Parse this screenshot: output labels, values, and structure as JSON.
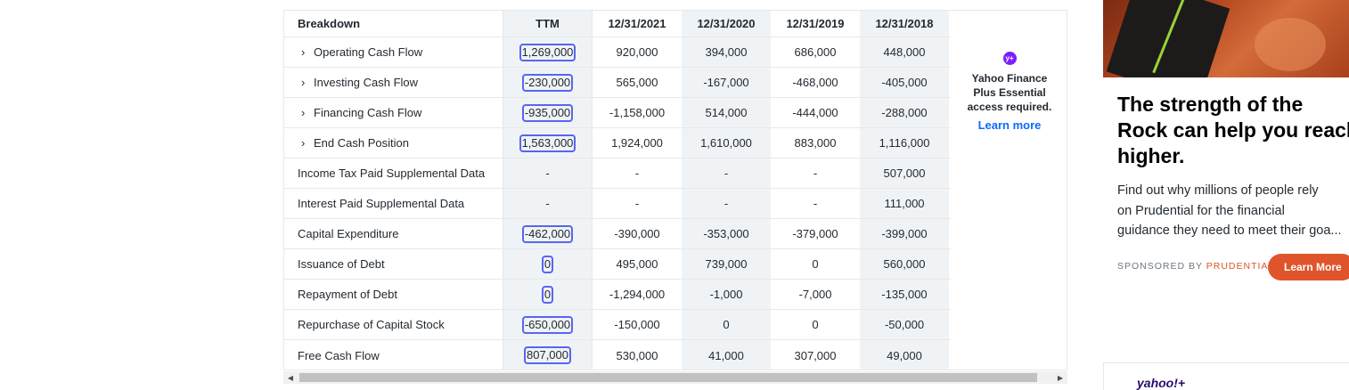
{
  "table": {
    "headers": [
      "Breakdown",
      "TTM",
      "12/31/2021",
      "12/31/2020",
      "12/31/2019",
      "12/31/2018"
    ],
    "rows": [
      {
        "label": "Operating Cash Flow",
        "expandable": true,
        "values": [
          "1,269,000",
          "920,000",
          "394,000",
          "686,000",
          "448,000"
        ]
      },
      {
        "label": "Investing Cash Flow",
        "expandable": true,
        "values": [
          "-230,000",
          "565,000",
          "-167,000",
          "-468,000",
          "-405,000"
        ]
      },
      {
        "label": "Financing Cash Flow",
        "expandable": true,
        "values": [
          "-935,000",
          "-1,158,000",
          "514,000",
          "-444,000",
          "-288,000"
        ]
      },
      {
        "label": "End Cash Position",
        "expandable": true,
        "values": [
          "1,563,000",
          "1,924,000",
          "1,610,000",
          "883,000",
          "1,116,000"
        ]
      },
      {
        "label": "Income Tax Paid Supplemental Data",
        "expandable": false,
        "values": [
          "-",
          "-",
          "-",
          "-",
          "507,000"
        ]
      },
      {
        "label": "Interest Paid Supplemental Data",
        "expandable": false,
        "values": [
          "-",
          "-",
          "-",
          "-",
          "111,000"
        ]
      },
      {
        "label": "Capital Expenditure",
        "expandable": false,
        "values": [
          "-462,000",
          "-390,000",
          "-353,000",
          "-379,000",
          "-399,000"
        ]
      },
      {
        "label": "Issuance of Debt",
        "expandable": false,
        "values": [
          "0",
          "495,000",
          "739,000",
          "0",
          "560,000"
        ]
      },
      {
        "label": "Repayment of Debt",
        "expandable": false,
        "values": [
          "0",
          "-1,294,000",
          "-1,000",
          "-7,000",
          "-135,000"
        ]
      },
      {
        "label": "Repurchase of Capital Stock",
        "expandable": false,
        "values": [
          "-650,000",
          "-150,000",
          "0",
          "0",
          "-50,000"
        ]
      },
      {
        "label": "Free Cash Flow",
        "expandable": false,
        "values": [
          "807,000",
          "530,000",
          "41,000",
          "307,000",
          "49,000"
        ]
      }
    ]
  },
  "plus_panel": {
    "badge": "y+",
    "message": "Yahoo Finance Plus Essential access required.",
    "link": "Learn more"
  },
  "ad": {
    "title_lines": [
      "The strength of the",
      "Rock can help you reach",
      "higher."
    ],
    "body_lines": [
      "Find out why millions of people rely",
      "on Prudential for the financial",
      "guidance they need to meet their goa..."
    ],
    "sponsored_prefix": "SPONSORED BY ",
    "sponsor": "PRUDENTIAL",
    "cta": "Learn More"
  },
  "bottom_logo": "yahoo!+",
  "icons": {
    "expand": "chevron-right-icon",
    "scroll_left": "triangle-left-icon",
    "scroll_right": "triangle-right-icon"
  },
  "colors": {
    "highlight_box": "#5865f2",
    "ad_cta": "#e0542b",
    "learn_more_link": "#0f69ff",
    "plus_badge": "#7b1fff"
  }
}
